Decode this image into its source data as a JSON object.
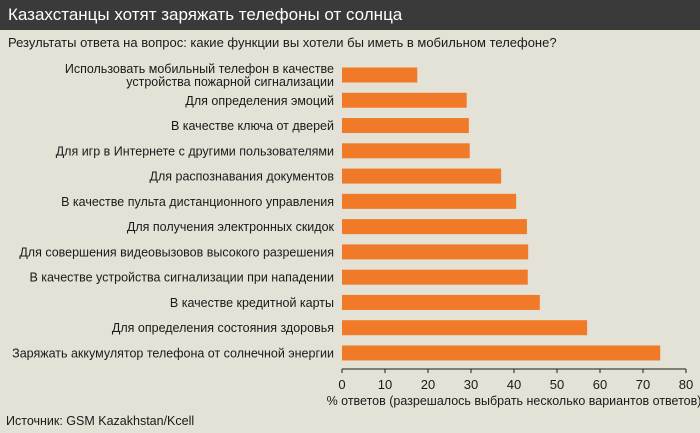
{
  "header": {
    "title": "Казахстанцы хотят заряжать телефоны от солнца",
    "subtitle": "Результаты ответа на вопрос: какие функции вы хотели бы иметь в мобильном телефоне?"
  },
  "footer": {
    "source": "Источник: GSM Kazakhstan/Kcell"
  },
  "colors": {
    "bar": "#f07a28",
    "title_bg": "#3a3a3a",
    "background": "#e4e1d6"
  },
  "chart_data": {
    "type": "bar",
    "orientation": "horizontal",
    "categories": [
      [
        "Использовать мобильный телефон в качестве",
        "устройства пожарной сигнализации"
      ],
      [
        "Для определения эмоций"
      ],
      [
        "В качестве ключа от дверей"
      ],
      [
        "Для игр в Интернете с другими пользователями"
      ],
      [
        "Для распознавания документов"
      ],
      [
        "В качестве пульта дистанционного управления"
      ],
      [
        "Для получения электронных скидок"
      ],
      [
        "Для совершения видеовызовов высокого разрешения"
      ],
      [
        "В качестве устройства сигнализации при нападении"
      ],
      [
        "В качестве кредитной карты"
      ],
      [
        "Для определения состояния здоровья"
      ],
      [
        "Заряжать аккумулятор телефона от солнечной энергии"
      ]
    ],
    "values": [
      17.5,
      29,
      29.5,
      29.7,
      37,
      40.5,
      43,
      43.3,
      43.2,
      46,
      57,
      74
    ],
    "xlabel": "% ответов (разрешалось выбрать несколько вариантов ответов)",
    "xlim": [
      0,
      80
    ],
    "xticks": [
      0,
      10,
      20,
      30,
      40,
      50,
      60,
      70,
      80
    ],
    "grid": false,
    "legend": "none"
  }
}
